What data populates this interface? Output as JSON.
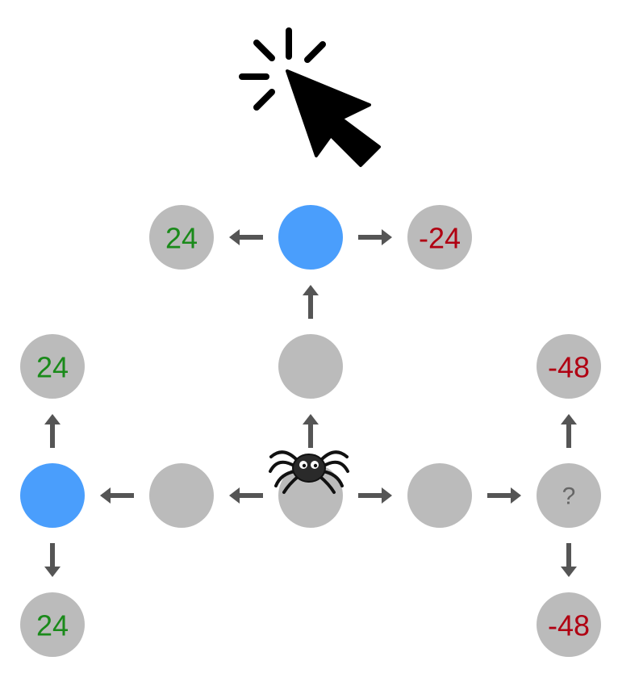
{
  "colors": {
    "node_default": "#bbbbbb",
    "node_highlight": "#4a9efc",
    "arrow": "#555555",
    "positive": "#1a8a1a",
    "negative": "#b00012",
    "unknown": "#666666",
    "cursor": "#000000",
    "spider_body": "#222222"
  },
  "cursor": {
    "icon": "click-cursor-icon"
  },
  "spider": {
    "icon": "spider-icon"
  },
  "nodes": {
    "top_left": {
      "label": "24",
      "tone": "positive",
      "fill": "node_default"
    },
    "top_center": {
      "label": "",
      "tone": "none",
      "fill": "node_highlight"
    },
    "top_right": {
      "label": "-24",
      "tone": "negative",
      "fill": "node_default"
    },
    "mid_center": {
      "label": "",
      "tone": "none",
      "fill": "node_default"
    },
    "upper_left": {
      "label": "24",
      "tone": "positive",
      "fill": "node_default"
    },
    "upper_right": {
      "label": "-48",
      "tone": "negative",
      "fill": "node_default"
    },
    "row_far_left": {
      "label": "",
      "tone": "none",
      "fill": "node_highlight"
    },
    "row_left": {
      "label": "",
      "tone": "none",
      "fill": "node_default"
    },
    "start": {
      "label": "",
      "tone": "none",
      "fill": "node_default"
    },
    "row_right": {
      "label": "",
      "tone": "none",
      "fill": "node_default"
    },
    "row_far_right": {
      "label": "?",
      "tone": "unknown",
      "fill": "node_default"
    },
    "bottom_left": {
      "label": "24",
      "tone": "positive",
      "fill": "node_default"
    },
    "bottom_right": {
      "label": "-48",
      "tone": "negative",
      "fill": "node_default"
    }
  },
  "edges": [
    {
      "from": "top_center",
      "to": "top_left"
    },
    {
      "from": "top_center",
      "to": "top_right"
    },
    {
      "from": "mid_center",
      "to": "top_center"
    },
    {
      "from": "start",
      "to": "mid_center"
    },
    {
      "from": "start",
      "to": "row_left"
    },
    {
      "from": "row_left",
      "to": "row_far_left"
    },
    {
      "from": "row_far_left",
      "to": "upper_left"
    },
    {
      "from": "row_far_left",
      "to": "bottom_left"
    },
    {
      "from": "start",
      "to": "row_right"
    },
    {
      "from": "row_right",
      "to": "row_far_right"
    },
    {
      "from": "row_far_right",
      "to": "upper_right"
    },
    {
      "from": "row_far_right",
      "to": "bottom_right"
    }
  ]
}
